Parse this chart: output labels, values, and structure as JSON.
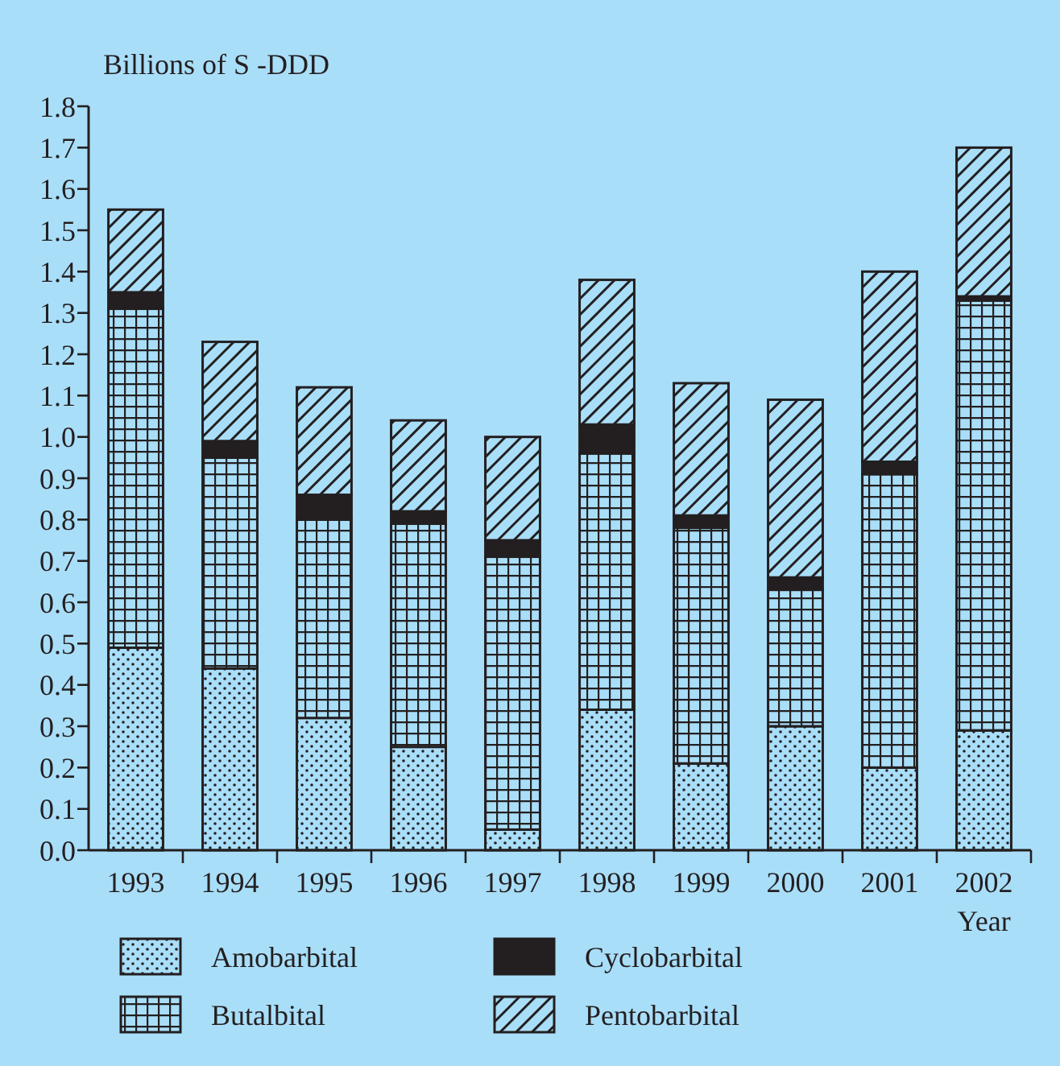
{
  "chart_data": {
    "type": "bar",
    "stacked": true,
    "ylabel": "Billions of S -DDD",
    "xlabel": "Year",
    "categories": [
      "1993",
      "1994",
      "1995",
      "1996",
      "1997",
      "1998",
      "1999",
      "2000",
      "2001",
      "2002"
    ],
    "series": [
      {
        "name": "Amobarbital",
        "color": "#231f20",
        "values": [
          0.49,
          0.44,
          0.32,
          0.25,
          0.05,
          0.34,
          0.21,
          0.3,
          0.2,
          0.29
        ]
      },
      {
        "name": "Butalbital",
        "color": "#231f20",
        "values": [
          0.82,
          0.51,
          0.48,
          0.54,
          0.66,
          0.62,
          0.57,
          0.33,
          0.71,
          1.04
        ]
      },
      {
        "name": "Cyclobarbital",
        "color": "#231f20",
        "values": [
          0.04,
          0.04,
          0.06,
          0.03,
          0.04,
          0.07,
          0.03,
          0.03,
          0.03,
          0.01
        ]
      },
      {
        "name": "Pentobarbital",
        "color": "#231f20",
        "values": [
          0.2,
          0.24,
          0.26,
          0.22,
          0.25,
          0.35,
          0.32,
          0.43,
          0.46,
          0.36
        ]
      }
    ],
    "ylim": [
      0,
      1.8
    ],
    "yticks": [
      {
        "value": 0,
        "label": "0.0"
      },
      0.1,
      0.2,
      0.3,
      0.4,
      0.5,
      0.6,
      0.7,
      0.8,
      0.9,
      {
        "value": 1,
        "label": "1.0"
      },
      1.1,
      1.2,
      1.3,
      1.4,
      1.5,
      1.6,
      1.7,
      1.8
    ],
    "grid": false,
    "legend": "bottom"
  }
}
